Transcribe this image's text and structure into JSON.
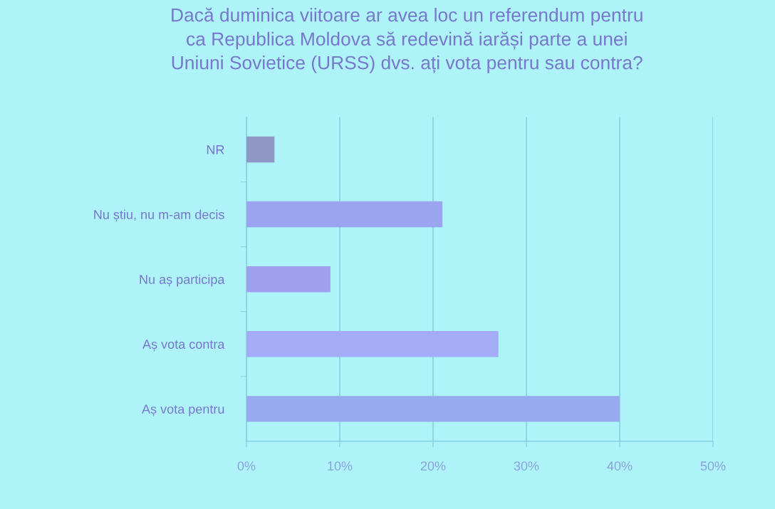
{
  "chart_data": {
    "type": "bar",
    "orientation": "horizontal",
    "title": "Dacă duminica viitoare ar avea loc un referendum pentru\nca Republica Moldova să redevină iarăși parte a unei\nUniuni Sovietice (URSS) dvs. ați vota pentru sau contra?",
    "categories": [
      "NR",
      "Nu știu, nu m-am decis",
      "Nu aș participa",
      "Aș vota contra",
      "Aș vota pentru"
    ],
    "values": [
      3,
      21,
      9,
      27,
      40
    ],
    "colors": [
      "#8e97c6",
      "#9ba4ee",
      "#a19ff0",
      "#a4acf6",
      "#98aaee"
    ],
    "xlim": [
      0,
      50
    ],
    "xticks": [
      {
        "value": 0,
        "label": "0%"
      },
      {
        "value": 10,
        "label": "10%"
      },
      {
        "value": 20,
        "label": "20%"
      },
      {
        "value": 30,
        "label": "30%"
      },
      {
        "value": 40,
        "label": "40%"
      },
      {
        "value": 50,
        "label": "50%"
      }
    ],
    "grid": "x",
    "legend": false
  }
}
